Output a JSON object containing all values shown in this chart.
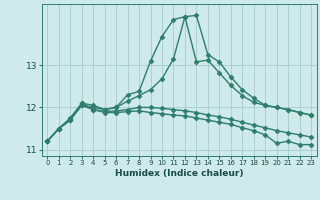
{
  "xlabel": "Humidex (Indice chaleur)",
  "x": [
    0,
    1,
    2,
    3,
    4,
    5,
    6,
    7,
    8,
    9,
    10,
    11,
    12,
    13,
    14,
    15,
    16,
    17,
    18,
    19,
    20,
    21,
    22,
    23
  ],
  "line1": [
    11.2,
    11.5,
    11.7,
    12.1,
    11.95,
    11.88,
    11.88,
    11.9,
    11.92,
    11.88,
    11.85,
    11.82,
    11.8,
    11.75,
    11.7,
    11.65,
    11.6,
    11.52,
    11.45,
    11.35,
    11.15,
    11.2,
    11.12,
    11.12
  ],
  "line2": [
    11.2,
    11.5,
    11.7,
    12.05,
    11.95,
    11.9,
    11.92,
    11.95,
    12.0,
    12.0,
    11.98,
    11.95,
    11.92,
    11.88,
    11.82,
    11.78,
    11.72,
    11.65,
    11.58,
    11.52,
    11.45,
    11.4,
    11.35,
    11.3
  ],
  "line3": [
    11.2,
    11.5,
    11.72,
    12.05,
    12.0,
    11.95,
    12.0,
    12.15,
    12.28,
    12.42,
    12.68,
    13.15,
    14.15,
    14.18,
    13.25,
    13.08,
    12.72,
    12.42,
    12.22,
    12.05,
    12.0,
    11.95,
    11.88,
    11.82
  ],
  "line4": [
    11.2,
    11.5,
    11.75,
    12.1,
    12.05,
    11.95,
    12.0,
    12.3,
    12.38,
    13.1,
    13.68,
    14.08,
    14.15,
    13.08,
    13.12,
    12.82,
    12.52,
    12.28,
    12.12,
    12.05,
    12.0,
    11.95,
    11.88,
    11.82
  ],
  "color": "#2e7d6e",
  "background_color": "#ceeaea",
  "grid_color": "#aacccc",
  "ylim": [
    10.85,
    14.45
  ],
  "yticks": [
    11,
    12,
    13
  ],
  "marker": "D",
  "markersize": 2.5,
  "linewidth": 1.0
}
